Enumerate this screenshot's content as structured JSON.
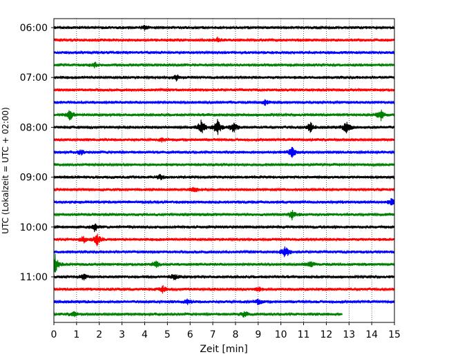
{
  "chart_data": {
    "type": "line",
    "subtype": "helicorder",
    "title": "",
    "xlabel": "Zeit  [min]",
    "ylabel": "UTC (Lokalzeit = UTC + 02:00)",
    "xlim": [
      0,
      15
    ],
    "x_ticks": [
      "0",
      "1",
      "2",
      "3",
      "4",
      "5",
      "6",
      "7",
      "8",
      "9",
      "10",
      "11",
      "12",
      "13",
      "14",
      "15"
    ],
    "y_tick_labels": [
      "06:00",
      "07:00",
      "08:00",
      "09:00",
      "10:00",
      "11:00"
    ],
    "grid": "vertical dotted lines at each minute",
    "trace_count": 24,
    "trace_minutes": 15,
    "line_colors": [
      "#000000",
      "#ff0000",
      "#0000ff",
      "#008000"
    ],
    "last_trace_end_min": 12.7,
    "event_markers": [
      {
        "trace": 0,
        "min": 4.0,
        "amp": 0.3
      },
      {
        "trace": 1,
        "min": 7.2,
        "amp": 0.3
      },
      {
        "trace": 3,
        "min": 1.8,
        "amp": 0.4
      },
      {
        "trace": 4,
        "min": 5.4,
        "amp": 0.5
      },
      {
        "trace": 6,
        "min": 9.3,
        "amp": 0.4
      },
      {
        "trace": 7,
        "min": 0.7,
        "amp": 0.9
      },
      {
        "trace": 7,
        "min": 14.4,
        "amp": 0.9
      },
      {
        "trace": 8,
        "min": 6.5,
        "amp": 1.2
      },
      {
        "trace": 8,
        "min": 7.2,
        "amp": 1.4
      },
      {
        "trace": 8,
        "min": 7.9,
        "amp": 0.9
      },
      {
        "trace": 8,
        "min": 11.3,
        "amp": 0.8
      },
      {
        "trace": 8,
        "min": 12.9,
        "amp": 1.0
      },
      {
        "trace": 9,
        "min": 4.8,
        "amp": 0.3
      },
      {
        "trace": 10,
        "min": 10.5,
        "amp": 0.9
      },
      {
        "trace": 10,
        "min": 1.2,
        "amp": 0.4
      },
      {
        "trace": 12,
        "min": 4.7,
        "amp": 0.4
      },
      {
        "trace": 13,
        "min": 6.2,
        "amp": 0.4
      },
      {
        "trace": 14,
        "min": 14.9,
        "amp": 0.7
      },
      {
        "trace": 15,
        "min": 10.5,
        "amp": 0.8
      },
      {
        "trace": 16,
        "min": 1.8,
        "amp": 0.7
      },
      {
        "trace": 17,
        "min": 1.9,
        "amp": 0.9
      },
      {
        "trace": 17,
        "min": 1.3,
        "amp": 0.6
      },
      {
        "trace": 18,
        "min": 10.2,
        "amp": 1.0
      },
      {
        "trace": 19,
        "min": 0.05,
        "amp": 1.6
      },
      {
        "trace": 19,
        "min": 4.5,
        "amp": 0.6
      },
      {
        "trace": 19,
        "min": 11.3,
        "amp": 0.5
      },
      {
        "trace": 20,
        "min": 1.3,
        "amp": 0.5
      },
      {
        "trace": 20,
        "min": 5.3,
        "amp": 0.5
      },
      {
        "trace": 21,
        "min": 4.8,
        "amp": 0.5
      },
      {
        "trace": 21,
        "min": 9.0,
        "amp": 0.4
      },
      {
        "trace": 22,
        "min": 5.9,
        "amp": 0.4
      },
      {
        "trace": 22,
        "min": 9.0,
        "amp": 0.4
      },
      {
        "trace": 23,
        "min": 8.4,
        "amp": 0.5
      },
      {
        "trace": 23,
        "min": 0.9,
        "amp": 0.4
      }
    ]
  }
}
